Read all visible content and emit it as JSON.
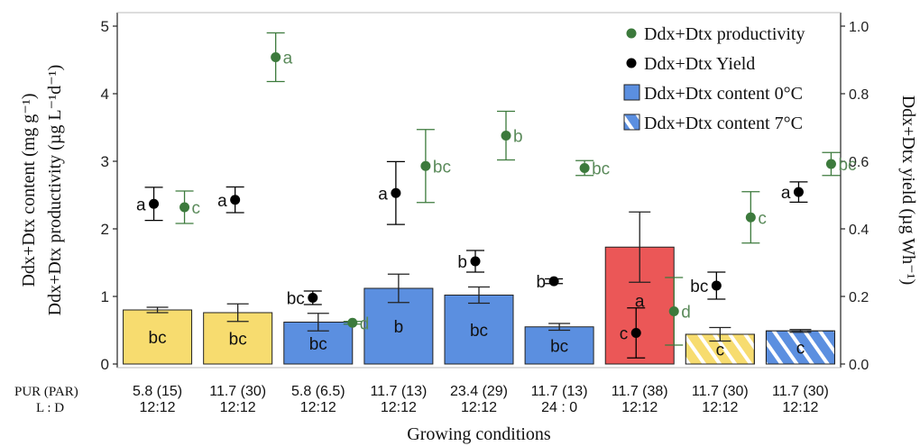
{
  "chart_data": {
    "type": "bar",
    "categories": [
      {
        "pur": "5.8 (15)",
        "ld": "12:12"
      },
      {
        "pur": "11.7 (30)",
        "ld": "12:12"
      },
      {
        "pur": "5.8 (6.5)",
        "ld": "12:12"
      },
      {
        "pur": "11.7 (13)",
        "ld": "12:12"
      },
      {
        "pur": "23.4 (29)",
        "ld": "12:12"
      },
      {
        "pur": "11.7 (13)",
        "ld": "24 : 0"
      },
      {
        "pur": "11.7 (38)",
        "ld": "12:12"
      },
      {
        "pur": "11.7 (30)",
        "ld": "12:12"
      },
      {
        "pur": "11.7 (30)",
        "ld": "12:12"
      }
    ],
    "row_labels": {
      "pur": "PUR (PAR)",
      "ld": "L : D"
    },
    "xlabel": "Growing conditions",
    "ylabel_left": [
      "Ddx+Dtx content (mg g⁻¹)",
      "Ddx+Dtx productivity (µg L⁻¹d⁻¹)"
    ],
    "ylabel_right": "Ddx+Dtx yield (µg Wh⁻¹)",
    "ylim_left": [
      0,
      5.2
    ],
    "ylim_right": [
      0,
      1.04
    ],
    "yticks_left": [
      "0",
      "1",
      "2",
      "3",
      "4",
      "5"
    ],
    "yticks_right": [
      "0.0",
      "0.2",
      "0.4",
      "0.6",
      "0.8",
      "1.0"
    ],
    "bars": {
      "values": [
        0.8,
        0.76,
        0.62,
        1.12,
        1.02,
        0.55,
        1.73,
        0.44,
        0.49
      ],
      "errors": [
        0.04,
        0.13,
        0.13,
        0.21,
        0.12,
        0.05,
        0.52,
        0.1,
        0.02
      ],
      "letters": [
        "bc",
        "bc",
        "bc",
        "b",
        "bc",
        "bc",
        "a",
        "c",
        "c"
      ],
      "colors": [
        "#f7dc6f",
        "#f7dc6f",
        "#5b8fe0",
        "#5b8fe0",
        "#5b8fe0",
        "#5b8fe0",
        "#eb5757",
        "#f7dc6f",
        "#5b8fe0"
      ],
      "hatched": [
        false,
        false,
        false,
        false,
        false,
        false,
        false,
        true,
        true
      ]
    },
    "productivity": {
      "values": [
        2.32,
        null,
        0.61,
        2.93,
        3.38,
        2.9,
        0.78,
        2.17,
        2.96
      ],
      "errors": [
        0.24,
        null,
        0.02,
        0.54,
        0.36,
        0.11,
        0.5,
        0.38,
        0.17
      ],
      "letters": [
        "c",
        "",
        "d",
        "bc",
        "b",
        "bc",
        "d",
        "c",
        "bc"
      ],
      "extra": {
        "category_index": 1,
        "value": 4.54,
        "error": 0.36,
        "letter": "a"
      }
    },
    "yield": {
      "values": [
        0.474,
        0.486,
        0.196,
        0.506,
        0.304,
        0.245,
        0.092,
        0.232,
        0.509
      ],
      "errors": [
        0.049,
        0.038,
        0.02,
        0.093,
        0.032,
        0.007,
        0.074,
        0.04,
        0.03
      ],
      "letters": [
        "a",
        "a",
        "bc",
        "a",
        "b",
        "b",
        "c",
        "bc",
        "a"
      ]
    },
    "legend": {
      "placement": "top-right",
      "entries": [
        {
          "label": "Ddx+Dtx productivity",
          "kind": "point",
          "color": "#3c7a3c"
        },
        {
          "label": "Ddx+Dtx Yield",
          "kind": "point",
          "color": "#000000"
        },
        {
          "label": "Ddx+Dtx content 0°C",
          "kind": "box",
          "color": "#5b8fe0"
        },
        {
          "label": "Ddx+Dtx content 7°C",
          "kind": "box-hatched",
          "color": "#5b8fe0"
        }
      ]
    },
    "colors": {
      "productivity": "#3c7a3c",
      "yield": "#000000",
      "axis": "#222222"
    }
  }
}
